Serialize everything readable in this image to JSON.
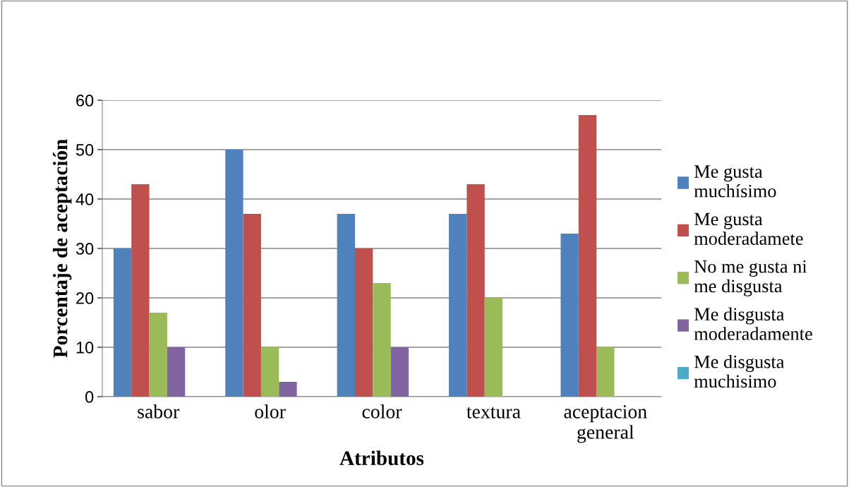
{
  "chart_data": {
    "type": "bar",
    "xlabel": "Atributos",
    "ylabel": "Porcentaje de aceptación",
    "categories": [
      "sabor",
      "olor",
      "color",
      "textura",
      "aceptacion\ngeneral"
    ],
    "series": [
      {
        "name": "Me gusta\nmuchísimo",
        "color": "#4f81bd",
        "values": [
          30,
          50,
          37,
          37,
          33
        ]
      },
      {
        "name": "Me gusta\nmoderadamete",
        "color": "#c0504d",
        "values": [
          43,
          37,
          30,
          43,
          57
        ]
      },
      {
        "name": "No me gusta ni\nme disgusta",
        "color": "#9bbb59",
        "values": [
          17,
          10,
          23,
          20,
          10
        ]
      },
      {
        "name": "Me disgusta\nmoderadamente",
        "color": "#8064a2",
        "values": [
          10,
          3,
          10,
          0,
          0
        ]
      },
      {
        "name": "Me disgusta\nmuchisimo",
        "color": "#4bacc6",
        "values": [
          0,
          0,
          0,
          0,
          0
        ]
      }
    ],
    "ylim": [
      0,
      60
    ],
    "yticks": [
      0,
      10,
      20,
      30,
      40,
      50,
      60
    ],
    "grid": "y",
    "legend": "right"
  }
}
